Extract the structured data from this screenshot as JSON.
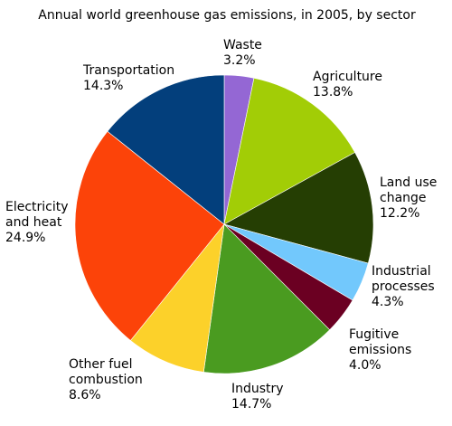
{
  "chart_data": {
    "type": "pie",
    "title": "Annual world greenhouse gas emissions, in 2005, by sector",
    "start_angle_deg": 0,
    "direction": "clockwise",
    "slices": [
      {
        "label": [
          "Waste"
        ],
        "value": 3.2,
        "value_text": "3.2%",
        "color": "#9467d4"
      },
      {
        "label": [
          "Agriculture"
        ],
        "value": 13.8,
        "value_text": "13.8%",
        "color": "#a2cd06"
      },
      {
        "label": [
          "Land use",
          "change"
        ],
        "value": 12.2,
        "value_text": "12.2%",
        "color": "#253e03"
      },
      {
        "label": [
          "Industrial",
          "processes"
        ],
        "value": 4.3,
        "value_text": "4.3%",
        "color": "#72c8fc"
      },
      {
        "label": [
          "Fugitive",
          "emissions"
        ],
        "value": 4.0,
        "value_text": "4.0%",
        "color": "#6b0022"
      },
      {
        "label": [
          "Industry"
        ],
        "value": 14.7,
        "value_text": "14.7%",
        "color": "#4a9b20"
      },
      {
        "label": [
          "Other fuel",
          "combustion"
        ],
        "value": 8.6,
        "value_text": "8.6%",
        "color": "#fcd12a"
      },
      {
        "label": [
          "Electricity",
          "and heat"
        ],
        "value": 24.9,
        "value_text": "24.9%",
        "color": "#fc4309"
      },
      {
        "label": [
          "Transportation"
        ],
        "value": 14.3,
        "value_text": "14.3%",
        "color": "#033f7c"
      }
    ]
  }
}
